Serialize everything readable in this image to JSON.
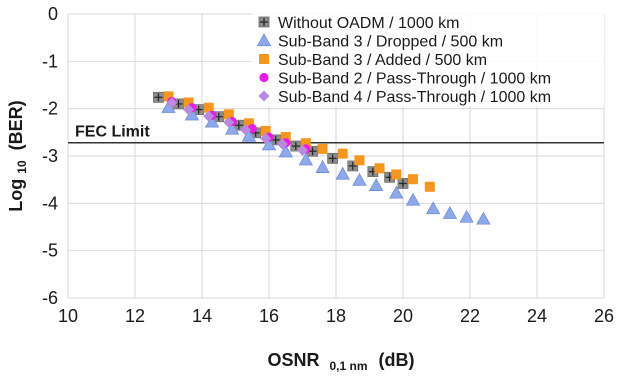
{
  "chart_data": {
    "type": "scatter",
    "title": "",
    "xlabel": "OSNR",
    "xlabel_sub": "0,1 nm",
    "xlabel_unit": "(dB)",
    "ylabel": "Log",
    "ylabel_sub": "10",
    "ylabel_unit": "(BER)",
    "xlim": [
      10,
      26
    ],
    "ylim": [
      -6,
      0
    ],
    "xticks": [
      10,
      12,
      14,
      16,
      18,
      20,
      22,
      24,
      26
    ],
    "yticks": [
      0,
      -1,
      -2,
      -3,
      -4,
      -5,
      -6
    ],
    "grid": true,
    "legend_position": "top-right",
    "fec_limit": {
      "label": "FEC Limit",
      "y": -2.72
    },
    "series": [
      {
        "name": "Without OADM / 1000 km",
        "marker": "square-plus",
        "color": "#8c8c8c",
        "x": [
          12.7,
          13.3,
          13.9,
          14.5,
          15.1,
          15.6,
          16.2,
          16.8,
          17.3,
          17.9,
          18.5,
          19.1,
          19.6,
          20.0
        ],
        "y": [
          -1.76,
          -1.9,
          -2.02,
          -2.17,
          -2.35,
          -2.51,
          -2.66,
          -2.79,
          -2.9,
          -3.05,
          -3.21,
          -3.33,
          -3.45,
          -3.58
        ]
      },
      {
        "name": "Sub-Band 3 / Dropped / 500 km",
        "marker": "triangle",
        "color": "#8fa8e8",
        "x": [
          13.0,
          13.7,
          14.3,
          14.9,
          15.4,
          16.0,
          16.5,
          17.1,
          17.6,
          18.2,
          18.7,
          19.2,
          19.8,
          20.3,
          20.9,
          21.4,
          21.9,
          22.4
        ],
        "y": [
          -1.97,
          -2.13,
          -2.28,
          -2.43,
          -2.58,
          -2.76,
          -2.91,
          -3.08,
          -3.24,
          -3.38,
          -3.51,
          -3.62,
          -3.78,
          -3.93,
          -4.11,
          -4.21,
          -4.29,
          -4.33
        ]
      },
      {
        "name": "Sub-Band 3 / Added / 500 km",
        "marker": "square",
        "color": "#f5961e",
        "x": [
          13.0,
          13.6,
          14.2,
          14.8,
          15.4,
          15.9,
          16.5,
          17.1,
          17.6,
          18.2,
          18.7,
          19.3,
          19.8,
          20.3,
          20.8
        ],
        "y": [
          -1.74,
          -1.87,
          -1.98,
          -2.12,
          -2.31,
          -2.47,
          -2.6,
          -2.73,
          -2.85,
          -2.95,
          -3.09,
          -3.26,
          -3.39,
          -3.49,
          -3.65
        ]
      },
      {
        "name": "Sub-Band 2 / Pass-Through / 1000 km",
        "marker": "circle",
        "color": "#e61ee6",
        "x": [
          13.1,
          13.7,
          14.3,
          14.9,
          15.5,
          16.0,
          16.5,
          17.1
        ],
        "y": [
          -1.85,
          -1.98,
          -2.14,
          -2.27,
          -2.42,
          -2.6,
          -2.72,
          -2.85
        ]
      },
      {
        "name": "Sub-Band 4 / Pass-Through / 1000 km",
        "marker": "diamond",
        "color": "#b98ae0",
        "x": [
          13.1,
          13.6,
          14.2,
          14.8,
          15.3,
          15.9,
          16.4,
          17.0
        ],
        "y": [
          -1.88,
          -2.02,
          -2.16,
          -2.29,
          -2.45,
          -2.63,
          -2.75,
          -2.88
        ]
      }
    ]
  }
}
